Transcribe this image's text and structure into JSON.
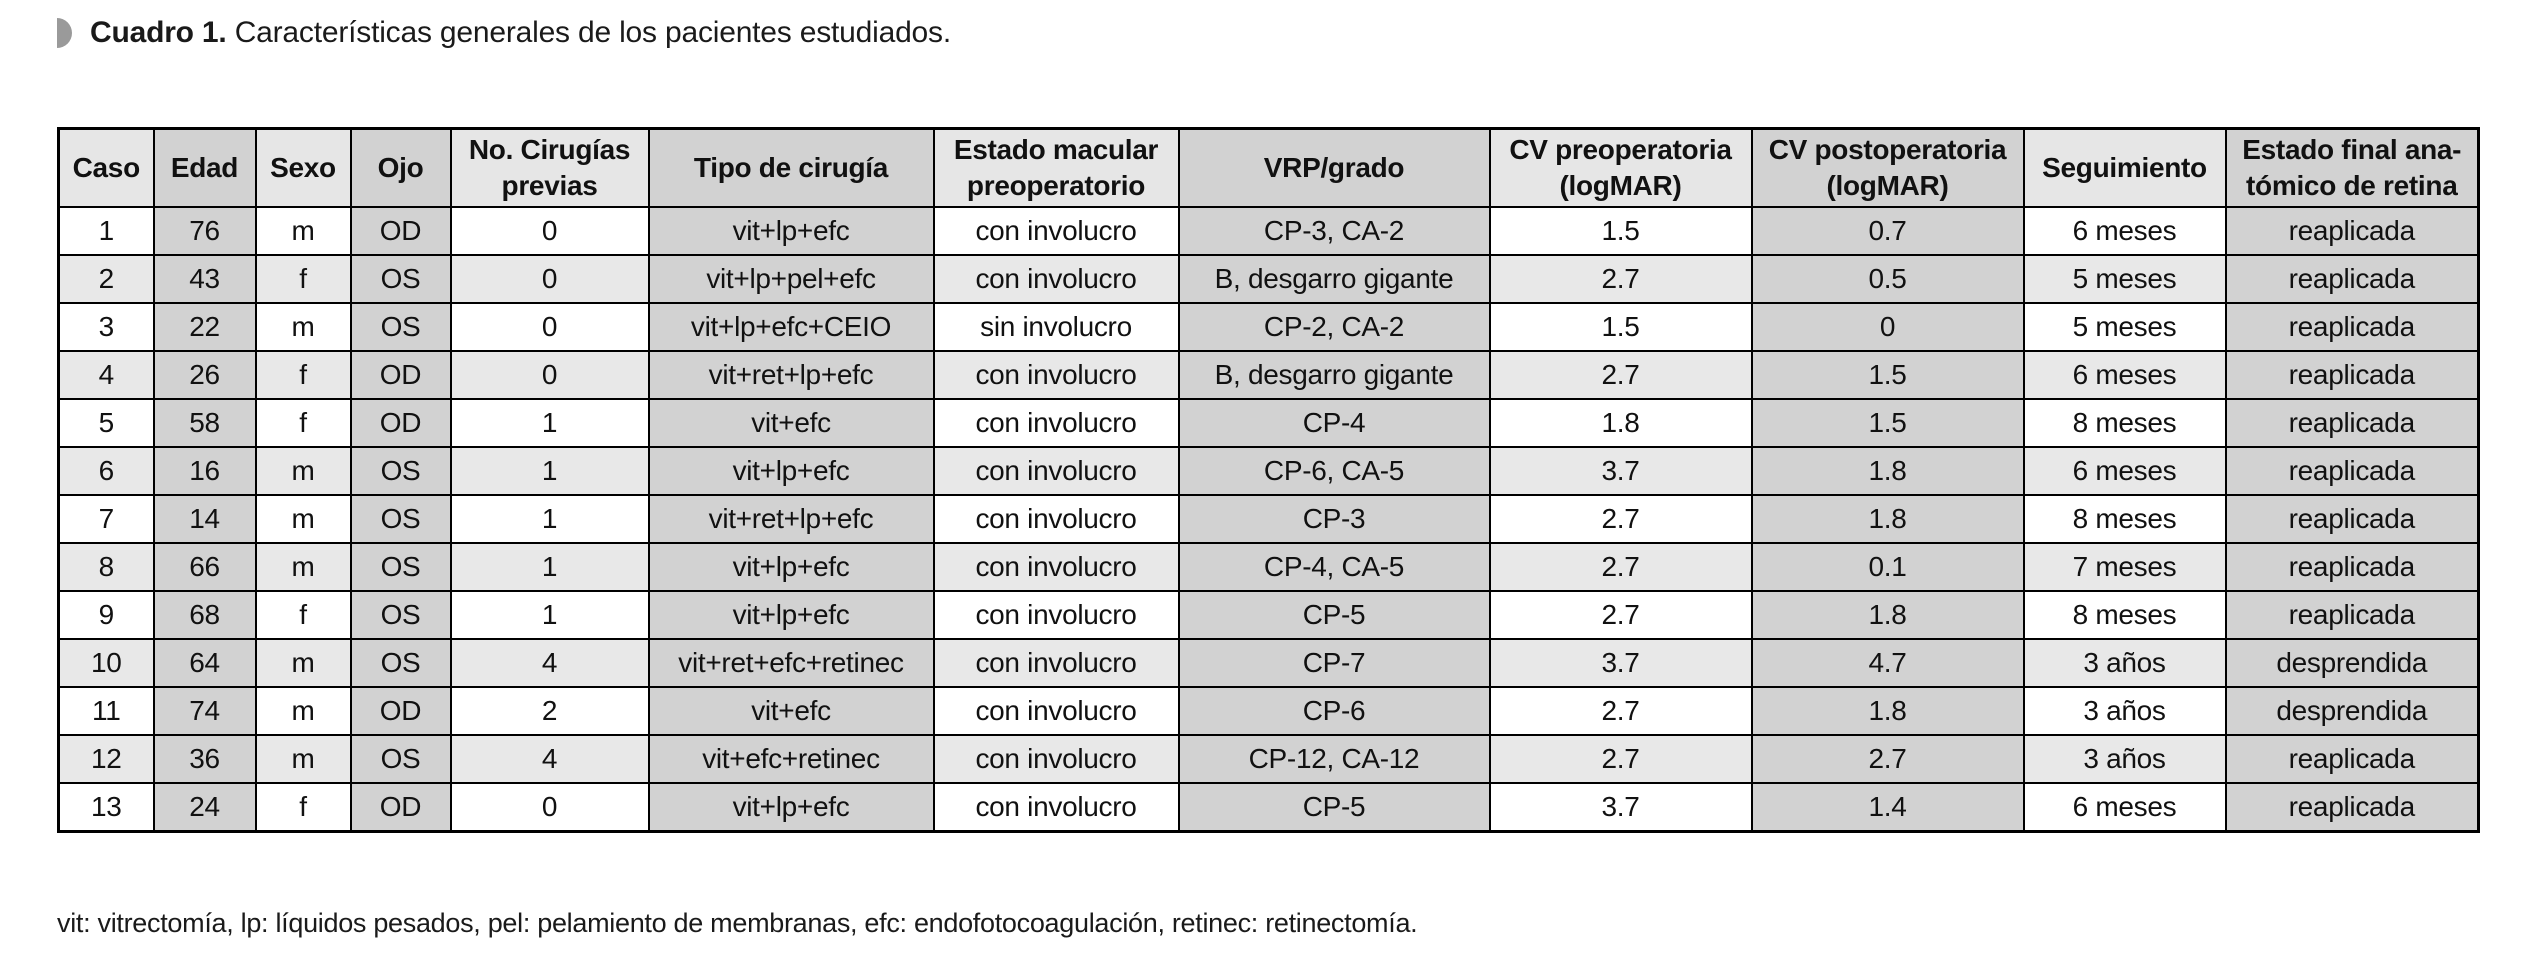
{
  "title": {
    "number": "Cuadro 1.",
    "description": " Características generales de los pacientes estudiados."
  },
  "table": {
    "headers": [
      "Caso",
      "Edad",
      "Sexo",
      "Ojo",
      "No. Cirugías\nprevias",
      "Tipo de cirugía",
      "Estado macular\npreoperatorio",
      "VRP/grado",
      "CV preoperatoria\n(logMAR)",
      "CV postoperatoria\n(logMAR)",
      "Seguimiento",
      "Estado final ana-\ntómico de retina"
    ],
    "rows": [
      [
        "1",
        "76",
        "m",
        "OD",
        "0",
        "vit+lp+efc",
        "con involucro",
        "CP-3, CA-2",
        "1.5",
        "0.7",
        "6 meses",
        "reaplicada"
      ],
      [
        "2",
        "43",
        "f",
        "OS",
        "0",
        "vit+lp+pel+efc",
        "con involucro",
        "B, desgarro gigante",
        "2.7",
        "0.5",
        "5 meses",
        "reaplicada"
      ],
      [
        "3",
        "22",
        "m",
        "OS",
        "0",
        "vit+lp+efc+CEIO",
        "sin involucro",
        "CP-2, CA-2",
        "1.5",
        "0",
        "5 meses",
        "reaplicada"
      ],
      [
        "4",
        "26",
        "f",
        "OD",
        "0",
        "vit+ret+lp+efc",
        "con involucro",
        "B, desgarro gigante",
        "2.7",
        "1.5",
        "6 meses",
        "reaplicada"
      ],
      [
        "5",
        "58",
        "f",
        "OD",
        "1",
        "vit+efc",
        "con involucro",
        "CP-4",
        "1.8",
        "1.5",
        "8 meses",
        "reaplicada"
      ],
      [
        "6",
        "16",
        "m",
        "OS",
        "1",
        "vit+lp+efc",
        "con involucro",
        "CP-6, CA-5",
        "3.7",
        "1.8",
        "6 meses",
        "reaplicada"
      ],
      [
        "7",
        "14",
        "m",
        "OS",
        "1",
        "vit+ret+lp+efc",
        "con involucro",
        "CP-3",
        "2.7",
        "1.8",
        "8 meses",
        "reaplicada"
      ],
      [
        "8",
        "66",
        "m",
        "OS",
        "1",
        "vit+lp+efc",
        "con involucro",
        "CP-4, CA-5",
        "2.7",
        "0.1",
        "7 meses",
        "reaplicada"
      ],
      [
        "9",
        "68",
        "f",
        "OS",
        "1",
        "vit+lp+efc",
        "con involucro",
        "CP-5",
        "2.7",
        "1.8",
        "8 meses",
        "reaplicada"
      ],
      [
        "10",
        "64",
        "m",
        "OS",
        "4",
        "vit+ret+efc+retinec",
        "con involucro",
        "CP-7",
        "3.7",
        "4.7",
        "3 años",
        "desprendida"
      ],
      [
        "11",
        "74",
        "m",
        "OD",
        "2",
        "vit+efc",
        "con involucro",
        "CP-6",
        "2.7",
        "1.8",
        "3 años",
        "desprendida"
      ],
      [
        "12",
        "36",
        "m",
        "OS",
        "4",
        "vit+efc+retinec",
        "con involucro",
        "CP-12, CA-12",
        "2.7",
        "2.7",
        "3 años",
        "reaplicada"
      ],
      [
        "13",
        "24",
        "f",
        "OD",
        "0",
        "vit+lp+efc",
        "con involucro",
        "CP-5",
        "3.7",
        "1.4",
        "6 meses",
        "reaplicada"
      ]
    ],
    "dark_column_indices": [
      1,
      3,
      5,
      7,
      9,
      11
    ]
  },
  "footnote": "vit: vitrectomía, lp: líquidos pesados, pel: pelamiento de membranas, efc: endofotocoagulación, retinec: retinectomía.",
  "colors": {
    "dark_column": "#d2d2d2",
    "header_light": "#e6e6e6",
    "row_stripe": "#e8e8e8",
    "border": "#000000",
    "bullet": "#9a9a9a"
  }
}
